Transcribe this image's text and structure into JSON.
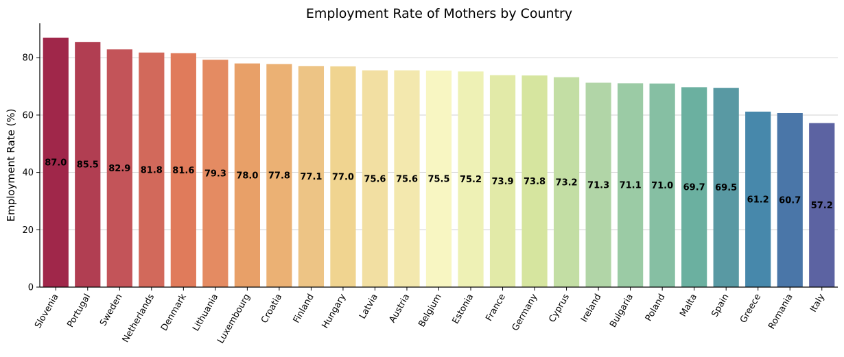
{
  "chart_data": {
    "type": "bar",
    "title": "Employment Rate of Mothers by Country",
    "xlabel": "",
    "ylabel": "Employment Rate (%)",
    "ylim": [
      0,
      92
    ],
    "yticks": [
      0,
      20,
      40,
      60,
      80
    ],
    "grid": "horizontal",
    "legend": "none",
    "categories": [
      "Slovenia",
      "Portugal",
      "Sweden",
      "Netherlands",
      "Denmark",
      "Lithuania",
      "Luxembourg",
      "Croatia",
      "Finland",
      "Hungary",
      "Latvia",
      "Austria",
      "Belgium",
      "Estonia",
      "France",
      "Germany",
      "Cyprus",
      "Ireland",
      "Bulgaria",
      "Poland",
      "Malta",
      "Spain",
      "Greece",
      "Romania",
      "Italy"
    ],
    "values": [
      87.0,
      85.5,
      82.9,
      81.8,
      81.6,
      79.3,
      78.0,
      77.8,
      77.1,
      77.0,
      75.6,
      75.6,
      75.5,
      75.2,
      73.9,
      73.8,
      73.2,
      71.3,
      71.1,
      71.0,
      69.7,
      69.5,
      61.2,
      60.7,
      57.2
    ],
    "value_labels": [
      "87.0",
      "85.5",
      "82.9",
      "81.8",
      "81.6",
      "79.3",
      "78.0",
      "77.8",
      "77.1",
      "77.0",
      "75.6",
      "75.6",
      "75.5",
      "75.2",
      "73.9",
      "73.8",
      "73.2",
      "71.3",
      "71.1",
      "71.0",
      "69.7",
      "69.5",
      "61.2",
      "60.7",
      "57.2"
    ],
    "colors": [
      "#a0274a",
      "#b13e52",
      "#c35459",
      "#d2695b",
      "#e07b5b",
      "#e48b62",
      "#e8a068",
      "#ebb174",
      "#edc485",
      "#f0d490",
      "#f2dfa2",
      "#f3e8ae",
      "#f8f6c2",
      "#eef1b5",
      "#e2eaa8",
      "#d6e59f",
      "#c3dea4",
      "#b1d5a7",
      "#9bcba5",
      "#86bfa3",
      "#6bb0a0",
      "#5999a3",
      "#4788ab",
      "#4a76a8",
      "#5c63a2"
    ]
  }
}
